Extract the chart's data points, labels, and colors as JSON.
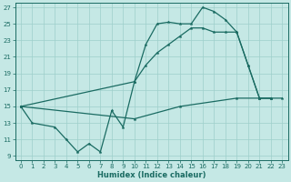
{
  "xlabel": "Humidex (Indice chaleur)",
  "bg_color": "#c5e8e5",
  "line_color": "#1a6b62",
  "grid_color": "#9dcfcb",
  "xlim": [
    -0.5,
    23.5
  ],
  "ylim": [
    8.5,
    27.5
  ],
  "xticks": [
    0,
    1,
    2,
    3,
    4,
    5,
    6,
    7,
    8,
    9,
    10,
    11,
    12,
    13,
    14,
    15,
    16,
    17,
    18,
    19,
    20,
    21,
    22,
    23
  ],
  "yticks": [
    9,
    11,
    13,
    15,
    17,
    19,
    21,
    23,
    25,
    27
  ],
  "curve1_x": [
    0,
    1,
    3,
    4,
    5,
    6,
    7,
    8,
    9,
    10,
    11,
    12,
    13,
    14,
    15,
    16,
    17,
    18,
    19,
    20,
    21,
    22
  ],
  "curve1_y": [
    15,
    13,
    12.5,
    11,
    9.5,
    10.5,
    9.5,
    14.5,
    12.5,
    18,
    22.5,
    25,
    25.2,
    25,
    25,
    27,
    26.5,
    25.5,
    24,
    20,
    16,
    16
  ],
  "curve2_x": [
    0,
    10,
    11,
    12,
    13,
    14,
    15,
    16,
    17,
    18,
    19,
    20,
    21,
    22
  ],
  "curve2_y": [
    15,
    18,
    20,
    21.5,
    22.5,
    23.5,
    24.5,
    24.5,
    24,
    24,
    24,
    20,
    16,
    16
  ],
  "curve3_x": [
    0,
    10,
    14,
    19,
    21,
    22,
    23
  ],
  "curve3_y": [
    15,
    13.5,
    15,
    16,
    16,
    16,
    16
  ]
}
